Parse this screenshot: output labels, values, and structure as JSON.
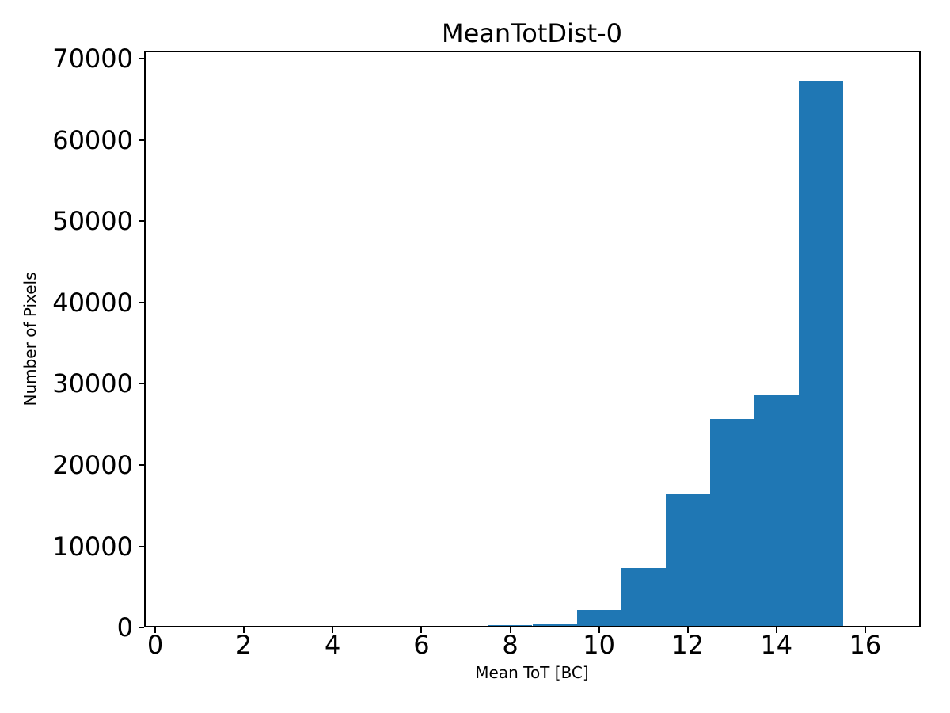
{
  "figure": {
    "background_color": "#ffffff",
    "text_color": "#000000"
  },
  "chart_data": {
    "type": "bar",
    "subtype": "histogram",
    "title": "MeanTotDist-0",
    "xlabel": "Mean ToT [BC]",
    "ylabel": "Number of Pixels",
    "bar_color": "#1f77b4",
    "bin_edges": [
      7.5,
      8.5,
      9.5,
      10.5,
      11.5,
      12.5,
      13.5,
      14.5,
      15.5
    ],
    "counts": [
      250,
      420,
      2120,
      7300,
      16400,
      25650,
      28590,
      67300
    ],
    "xticks": [
      0,
      2,
      4,
      6,
      8,
      10,
      12,
      14,
      16
    ],
    "yticks": [
      0,
      10000,
      20000,
      30000,
      40000,
      50000,
      60000,
      70000
    ],
    "xlim": [
      -0.25,
      17.25
    ],
    "ylim": [
      0,
      71000
    ],
    "grid": false,
    "legend": null
  }
}
